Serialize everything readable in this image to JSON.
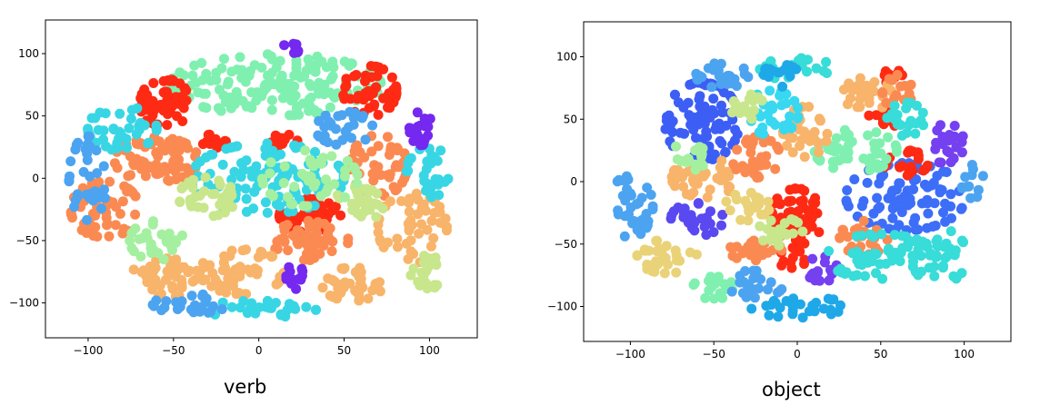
{
  "chart_data": [
    {
      "type": "scatter",
      "caption": "verb",
      "xlim": [
        -125,
        128
      ],
      "ylim": [
        -128,
        127
      ],
      "xticks": [
        -100,
        -50,
        0,
        50,
        100
      ],
      "yticks": [
        -100,
        -50,
        0,
        50,
        100
      ],
      "xtick_labels": [
        "−100",
        "−50",
        "0",
        "50",
        "100"
      ],
      "ytick_labels": [
        "−100",
        "−50",
        "0",
        "50",
        "100"
      ],
      "grid": false,
      "clusters": [
        {
          "color": "#80f0b0",
          "cx": 10,
          "cy": 75,
          "rx": 55,
          "ry": 22,
          "n": 160
        },
        {
          "color": "#ff2a14",
          "cx": -55,
          "cy": 60,
          "rx": 13,
          "ry": 18,
          "n": 55
        },
        {
          "color": "#ff2a14",
          "cx": 65,
          "cy": 70,
          "rx": 14,
          "ry": 18,
          "n": 50
        },
        {
          "color": "#ff2a14",
          "cx": 30,
          "cy": -30,
          "rx": 16,
          "ry": 12,
          "n": 45
        },
        {
          "color": "#ff2a14",
          "cx": -25,
          "cy": 30,
          "rx": 8,
          "ry": 5,
          "n": 18
        },
        {
          "color": "#ff2a14",
          "cx": 15,
          "cy": 30,
          "rx": 7,
          "ry": 5,
          "n": 16
        },
        {
          "color": "#fb8a52",
          "cx": -60,
          "cy": 15,
          "rx": 22,
          "ry": 16,
          "n": 70
        },
        {
          "color": "#fb8a52",
          "cx": -90,
          "cy": -25,
          "rx": 18,
          "ry": 20,
          "n": 60
        },
        {
          "color": "#fb8a52",
          "cx": 30,
          "cy": -50,
          "rx": 20,
          "ry": 14,
          "n": 55
        },
        {
          "color": "#fb8a52",
          "cx": 70,
          "cy": 10,
          "rx": 15,
          "ry": 22,
          "n": 50
        },
        {
          "color": "#f8b46a",
          "cx": -10,
          "cy": -75,
          "rx": 22,
          "ry": 16,
          "n": 55
        },
        {
          "color": "#f8b46a",
          "cx": 90,
          "cy": -40,
          "rx": 18,
          "ry": 25,
          "n": 50
        },
        {
          "color": "#f8b46a",
          "cx": -55,
          "cy": -80,
          "rx": 18,
          "ry": 14,
          "n": 45
        },
        {
          "color": "#f8b46a",
          "cx": 55,
          "cy": -85,
          "rx": 16,
          "ry": 12,
          "n": 40
        },
        {
          "color": "#38d6e4",
          "cx": 5,
          "cy": 0,
          "rx": 40,
          "ry": 25,
          "n": 110
        },
        {
          "color": "#38d6e4",
          "cx": -80,
          "cy": 40,
          "rx": 18,
          "ry": 16,
          "n": 40
        },
        {
          "color": "#38d6e4",
          "cx": 100,
          "cy": 5,
          "rx": 12,
          "ry": 18,
          "n": 30
        },
        {
          "color": "#38d6e4",
          "cx": 0,
          "cy": -105,
          "rx": 30,
          "ry": 6,
          "n": 35
        },
        {
          "color": "#c8e68c",
          "cx": -30,
          "cy": -15,
          "rx": 15,
          "ry": 14,
          "n": 35
        },
        {
          "color": "#c8e68c",
          "cx": 60,
          "cy": -20,
          "rx": 14,
          "ry": 12,
          "n": 30
        },
        {
          "color": "#c8e68c",
          "cx": 100,
          "cy": -75,
          "rx": 10,
          "ry": 12,
          "n": 20
        },
        {
          "color": "#4ca4f0",
          "cx": -100,
          "cy": 0,
          "rx": 10,
          "ry": 30,
          "n": 35
        },
        {
          "color": "#4ca4f0",
          "cx": 50,
          "cy": 40,
          "rx": 15,
          "ry": 12,
          "n": 30
        },
        {
          "color": "#4ca4f0",
          "cx": -40,
          "cy": -100,
          "rx": 20,
          "ry": 8,
          "n": 25
        },
        {
          "color": "#7428f0",
          "cx": 95,
          "cy": 40,
          "rx": 6,
          "ry": 12,
          "n": 20
        },
        {
          "color": "#7428f0",
          "cx": 20,
          "cy": -80,
          "rx": 8,
          "ry": 8,
          "n": 14
        },
        {
          "color": "#7428f0",
          "cx": 20,
          "cy": 105,
          "rx": 5,
          "ry": 4,
          "n": 8
        },
        {
          "color": "#a4f0a0",
          "cx": 30,
          "cy": 0,
          "rx": 25,
          "ry": 20,
          "n": 45
        },
        {
          "color": "#a4f0a0",
          "cx": -60,
          "cy": -50,
          "rx": 14,
          "ry": 14,
          "n": 30
        }
      ]
    },
    {
      "type": "scatter",
      "caption": "object",
      "xlim": [
        -128,
        128
      ],
      "ylim": [
        -128,
        128
      ],
      "xticks": [
        -100,
        -50,
        0,
        50,
        100
      ],
      "yticks": [
        -100,
        -50,
        0,
        50,
        100
      ],
      "xtick_labels": [
        "−100",
        "−50",
        "0",
        "50",
        "100"
      ],
      "ytick_labels": [
        "−100",
        "−50",
        "0",
        "50",
        "100"
      ],
      "grid": false,
      "clusters": [
        {
          "color": "#3d5ef5",
          "cx": -57,
          "cy": 48,
          "rx": 20,
          "ry": 28,
          "n": 90
        },
        {
          "color": "#3d6ef8",
          "cx": 65,
          "cy": -12,
          "rx": 32,
          "ry": 24,
          "n": 90
        },
        {
          "color": "#ff2a14",
          "cx": 0,
          "cy": -28,
          "rx": 14,
          "ry": 20,
          "n": 60
        },
        {
          "color": "#ff2a14",
          "cx": 52,
          "cy": 50,
          "rx": 9,
          "ry": 6,
          "n": 16
        },
        {
          "color": "#ff2a14",
          "cx": 65,
          "cy": 15,
          "rx": 12,
          "ry": 9,
          "n": 22
        },
        {
          "color": "#ff2a14",
          "cx": -3,
          "cy": -62,
          "rx": 7,
          "ry": 8,
          "n": 12
        },
        {
          "color": "#ff2a14",
          "cx": 55,
          "cy": 85,
          "rx": 7,
          "ry": 5,
          "n": 10
        },
        {
          "color": "#7440f0",
          "cx": 90,
          "cy": 30,
          "rx": 9,
          "ry": 15,
          "n": 24
        },
        {
          "color": "#7440f0",
          "cx": 15,
          "cy": -70,
          "rx": 9,
          "ry": 9,
          "n": 16
        },
        {
          "color": "#5a48f0",
          "cx": -60,
          "cy": -30,
          "rx": 14,
          "ry": 12,
          "n": 28
        },
        {
          "color": "#80f0b0",
          "cx": 35,
          "cy": 25,
          "rx": 22,
          "ry": 15,
          "n": 50
        },
        {
          "color": "#80f0b0",
          "cx": -50,
          "cy": -85,
          "rx": 12,
          "ry": 8,
          "n": 20
        },
        {
          "color": "#f8b46a",
          "cx": -55,
          "cy": 3,
          "rx": 18,
          "ry": 14,
          "n": 45
        },
        {
          "color": "#f8b46a",
          "cx": 5,
          "cy": 40,
          "rx": 12,
          "ry": 18,
          "n": 35
        },
        {
          "color": "#f8b46a",
          "cx": 42,
          "cy": 70,
          "rx": 13,
          "ry": 12,
          "n": 30
        },
        {
          "color": "#fb8a52",
          "cx": -25,
          "cy": 20,
          "rx": 13,
          "ry": 15,
          "n": 35
        },
        {
          "color": "#fb8a52",
          "cx": -25,
          "cy": -55,
          "rx": 14,
          "ry": 8,
          "n": 25
        },
        {
          "color": "#fb8a52",
          "cx": 40,
          "cy": -45,
          "rx": 13,
          "ry": 12,
          "n": 25
        },
        {
          "color": "#fb8a52",
          "cx": 60,
          "cy": 72,
          "rx": 8,
          "ry": 12,
          "n": 16
        },
        {
          "color": "#38dcd8",
          "cx": 50,
          "cy": -60,
          "rx": 30,
          "ry": 16,
          "n": 55
        },
        {
          "color": "#38dcd8",
          "cx": 85,
          "cy": -60,
          "rx": 15,
          "ry": 20,
          "n": 35
        },
        {
          "color": "#38dcd8",
          "cx": 65,
          "cy": 50,
          "rx": 10,
          "ry": 12,
          "n": 22
        },
        {
          "color": "#38dcd8",
          "cx": 0,
          "cy": 90,
          "rx": 20,
          "ry": 8,
          "n": 22
        },
        {
          "color": "#38d8f0",
          "cx": -15,
          "cy": 55,
          "rx": 14,
          "ry": 16,
          "n": 35
        },
        {
          "color": "#4ca4f0",
          "cx": -100,
          "cy": -20,
          "rx": 12,
          "ry": 22,
          "n": 35
        },
        {
          "color": "#4ca4f0",
          "cx": -45,
          "cy": 85,
          "rx": 14,
          "ry": 9,
          "n": 25
        },
        {
          "color": "#4ca4f0",
          "cx": -25,
          "cy": -82,
          "rx": 15,
          "ry": 10,
          "n": 25
        },
        {
          "color": "#4ca4f0",
          "cx": 105,
          "cy": 0,
          "rx": 6,
          "ry": 12,
          "n": 12
        },
        {
          "color": "#c8e68c",
          "cx": -30,
          "cy": 60,
          "rx": 9,
          "ry": 9,
          "n": 18
        },
        {
          "color": "#c8e68c",
          "cx": -10,
          "cy": -40,
          "rx": 12,
          "ry": 10,
          "n": 20
        },
        {
          "color": "#ead278",
          "cx": -78,
          "cy": -60,
          "rx": 16,
          "ry": 12,
          "n": 32
        },
        {
          "color": "#ead278",
          "cx": -30,
          "cy": -20,
          "rx": 12,
          "ry": 10,
          "n": 22
        },
        {
          "color": "#a4f0a0",
          "cx": -65,
          "cy": 20,
          "rx": 10,
          "ry": 10,
          "n": 16
        },
        {
          "color": "#1fa8e8",
          "cx": -10,
          "cy": 85,
          "rx": 10,
          "ry": 8,
          "n": 16
        },
        {
          "color": "#1fa8e8",
          "cx": 0,
          "cy": -100,
          "rx": 25,
          "ry": 8,
          "n": 28
        }
      ]
    }
  ]
}
